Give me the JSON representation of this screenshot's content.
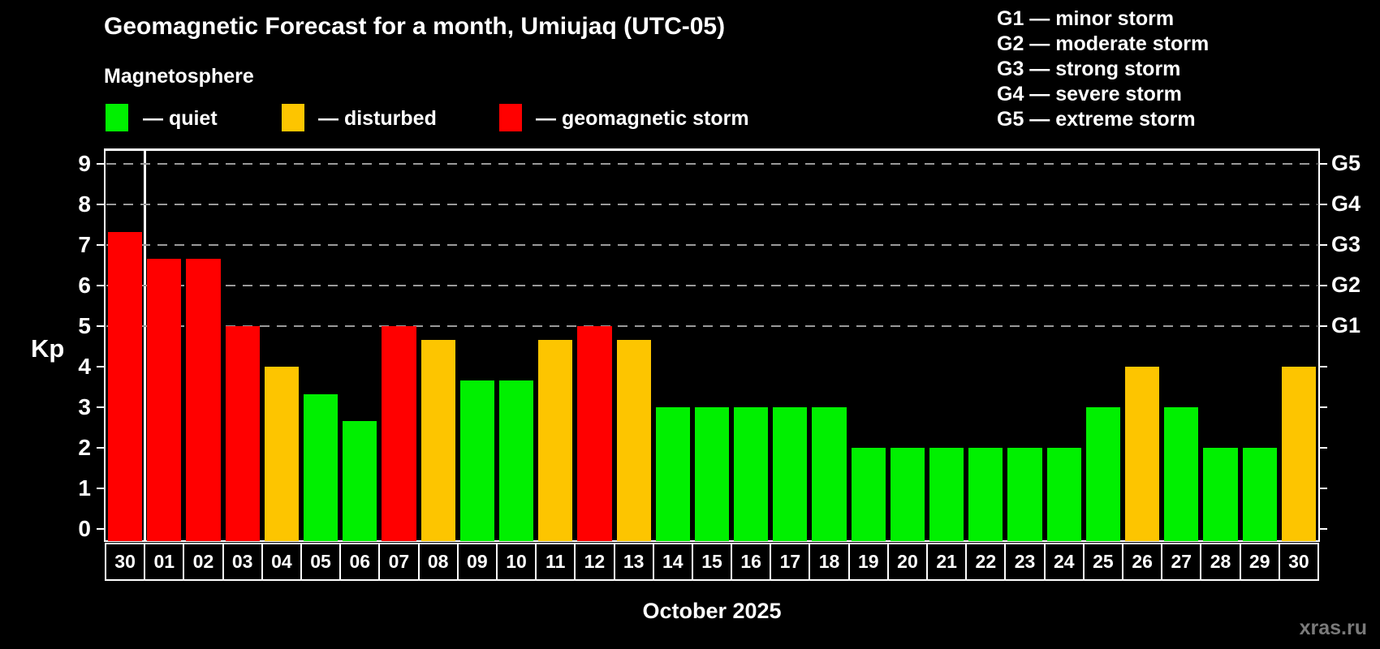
{
  "header": {
    "title": "Geomagnetic Forecast for a month, Umiujaq (UTC-05)",
    "subtitle": "Magnetosphere",
    "legend": [
      {
        "status": "quiet",
        "label": "— quiet"
      },
      {
        "status": "disturbed",
        "label": "— disturbed"
      },
      {
        "status": "storm",
        "label": "— geomagnetic storm"
      }
    ],
    "storm_scale": [
      "G1 — minor storm",
      "G2 — moderate storm",
      "G3 — strong storm",
      "G4 — severe storm",
      "G5 — extreme storm"
    ]
  },
  "colors": {
    "quiet": "#00f000",
    "disturbed": "#fdc500",
    "storm": "#ff0000",
    "grid": "#9a9a9a",
    "axis": "#ffffff",
    "watermark": "#7a7a7a",
    "background": "#000000"
  },
  "axis": {
    "ylabel": "Kp",
    "yticks": [
      0,
      1,
      2,
      3,
      4,
      5,
      6,
      7,
      8,
      9
    ],
    "grid_at": [
      5,
      6,
      7,
      8,
      9
    ],
    "right_labels": [
      {
        "kp": 5,
        "text": "G1"
      },
      {
        "kp": 6,
        "text": "G2"
      },
      {
        "kp": 7,
        "text": "G3"
      },
      {
        "kp": 8,
        "text": "G4"
      },
      {
        "kp": 9,
        "text": "G5"
      }
    ],
    "xlabel": "October 2025"
  },
  "watermark": "xras.ru",
  "chart_data": {
    "type": "bar",
    "title": "Geomagnetic Forecast for a month, Umiujaq (UTC-05)",
    "ylabel": "Kp",
    "xlabel": "October 2025",
    "ylim": [
      0,
      9.4
    ],
    "grid": "dashed horizontal lines at Kp 5,6,7,8,9",
    "legend_position": "top-left and top-right",
    "categories": [
      "30",
      "01",
      "02",
      "03",
      "04",
      "05",
      "06",
      "07",
      "08",
      "09",
      "10",
      "11",
      "12",
      "13",
      "14",
      "15",
      "16",
      "17",
      "18",
      "19",
      "20",
      "21",
      "22",
      "23",
      "24",
      "25",
      "26",
      "27",
      "28",
      "29",
      "30"
    ],
    "values": [
      7.33,
      6.67,
      6.67,
      5,
      4,
      3.33,
      2.67,
      5,
      4.67,
      3.67,
      3.67,
      4.67,
      5,
      4.67,
      3,
      3,
      3,
      3,
      3,
      2,
      2,
      2,
      2,
      2,
      2,
      3,
      4,
      3,
      2,
      2,
      4
    ],
    "statuses": [
      "storm",
      "storm",
      "storm",
      "storm",
      "disturbed",
      "quiet",
      "quiet",
      "storm",
      "disturbed",
      "quiet",
      "quiet",
      "disturbed",
      "storm",
      "disturbed",
      "quiet",
      "quiet",
      "quiet",
      "quiet",
      "quiet",
      "quiet",
      "quiet",
      "quiet",
      "quiet",
      "quiet",
      "quiet",
      "quiet",
      "disturbed",
      "quiet",
      "quiet",
      "quiet",
      "disturbed"
    ],
    "separator_after_first_category": true
  }
}
